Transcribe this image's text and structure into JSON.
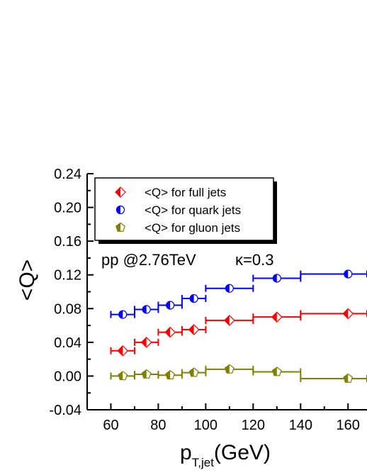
{
  "chart_data": {
    "type": "scatter",
    "title": "",
    "annotation": {
      "text": "pp @2.76TeV",
      "kappa": "κ=0.3"
    },
    "xlabel": {
      "main": "p",
      "sub": "T,jet",
      "unit": "(GeV)"
    },
    "ylabel": "<Q>",
    "xlim": [
      50,
      168
    ],
    "ylim": [
      -0.04,
      0.24
    ],
    "x_ticks": [
      60,
      80,
      100,
      120,
      140,
      160
    ],
    "x_tick_labels": [
      "60",
      "80",
      "100",
      "120",
      "140",
      "160"
    ],
    "y_ticks": [
      -0.04,
      0.0,
      0.04,
      0.08,
      0.12,
      0.16,
      0.2,
      0.24
    ],
    "y_tick_labels": [
      "-0.04",
      "0.00",
      "0.04",
      "0.08",
      "0.12",
      "0.16",
      "0.20",
      "0.24"
    ],
    "grid": false,
    "legend_position": "top-left",
    "bins": [
      [
        60,
        70
      ],
      [
        70,
        80
      ],
      [
        80,
        90
      ],
      [
        90,
        100
      ],
      [
        100,
        120
      ],
      [
        120,
        140
      ],
      [
        140,
        168
      ]
    ],
    "x": [
      65,
      75,
      85,
      95,
      110,
      130,
      160
    ],
    "series": [
      {
        "name": "<Q> for full jets",
        "marker": "diamond",
        "color": "#ff0000",
        "values": [
          0.03,
          0.04,
          0.052,
          0.055,
          0.066,
          0.07,
          0.074
        ]
      },
      {
        "name": "<Q> for quark jets",
        "marker": "circle",
        "color": "#0000ff",
        "values": [
          0.073,
          0.079,
          0.084,
          0.092,
          0.104,
          0.116,
          0.121
        ]
      },
      {
        "name": "<Q> for gluon jets",
        "marker": "pentagon",
        "color": "#808000",
        "values": [
          0.0,
          0.002,
          0.001,
          0.004,
          0.008,
          0.005,
          -0.003
        ]
      }
    ]
  }
}
